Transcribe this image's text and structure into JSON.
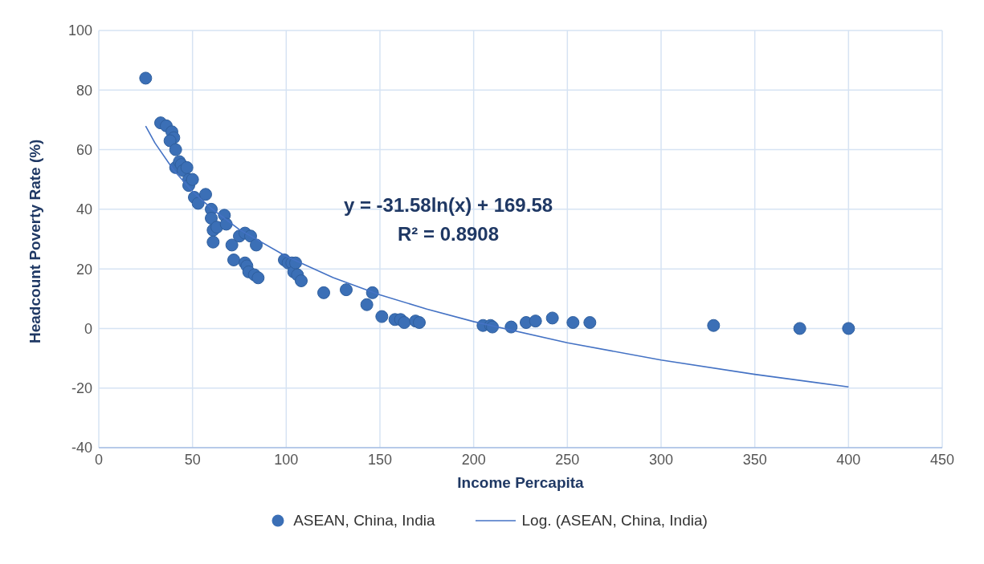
{
  "chart_data": {
    "type": "scatter",
    "xlabel": "Income Percapita",
    "ylabel": "Headcount Poverty Rate (%)",
    "annotations": [
      "y = -31.58ln(x) + 169.58",
      "R² = 0.8908"
    ],
    "series": [
      {
        "name": "ASEAN, China, India",
        "color": "#3b6fb6",
        "marker": "circle",
        "x": [
          25,
          33,
          36,
          39,
          40,
          38,
          41,
          41,
          43,
          44,
          45,
          47,
          48,
          48,
          50,
          51,
          53,
          57,
          60,
          60,
          61,
          61,
          63,
          67,
          68,
          71,
          72,
          75,
          78,
          78,
          79,
          80,
          81,
          83,
          84,
          85,
          99,
          101,
          103,
          104,
          105,
          106,
          108,
          120,
          132,
          143,
          146,
          151,
          158,
          161,
          163,
          169,
          171,
          205,
          209,
          210,
          220,
          228,
          233,
          242,
          253,
          262,
          328,
          374,
          400
        ],
        "values": [
          84,
          69,
          68,
          66,
          64,
          63,
          60,
          54,
          56,
          55,
          53,
          54,
          50,
          48,
          50,
          44,
          42,
          45,
          40,
          37,
          33,
          29,
          34,
          38,
          35,
          28,
          23,
          31,
          32,
          22,
          21,
          19,
          31,
          18,
          28,
          17,
          23,
          22,
          22,
          19,
          22,
          18,
          16,
          12,
          13,
          8,
          12,
          4,
          3,
          3,
          2,
          2.5,
          2,
          1,
          1,
          0.5,
          0.5,
          2,
          2.5,
          3.5,
          2,
          2,
          1,
          0,
          0
        ]
      },
      {
        "name": "Log. (ASEAN, China, India)",
        "type": "line",
        "color": "#4472c4",
        "marker": "none",
        "x": [
          25,
          30,
          40,
          50,
          60,
          75,
          100,
          125,
          150,
          175,
          200,
          250,
          300,
          350,
          400
        ],
        "values": [
          67.9,
          62.2,
          53.1,
          46.0,
          40.3,
          33.2,
          24.2,
          17.1,
          11.3,
          6.5,
          2.3,
          -4.8,
          -10.6,
          -15.4,
          -19.6
        ]
      }
    ],
    "xlim": [
      0,
      450
    ],
    "xticks": [
      0,
      50,
      100,
      150,
      200,
      250,
      300,
      350,
      400,
      450
    ],
    "ylim": [
      -40,
      100
    ],
    "yticks": [
      -40,
      -20,
      0,
      20,
      40,
      60,
      80,
      100
    ],
    "grid": true,
    "legend": "bottom"
  }
}
